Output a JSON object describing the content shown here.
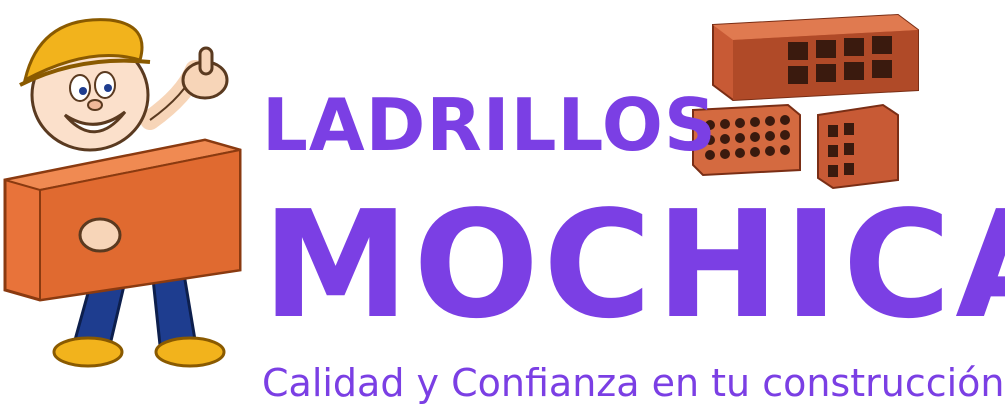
{
  "logo": {
    "line1": "LADRILLOS",
    "line2": "MOCHICA",
    "tagline": "Calidad y Confianza en tu construcción"
  },
  "colors": {
    "brand_purple": "#7b3fe4",
    "brick_orange": "#e8733a",
    "helmet_yellow": "#f2b31c",
    "jeans_blue": "#1e3d8f"
  },
  "icons": [
    "worker-mascot-icon",
    "bricks-icon"
  ]
}
